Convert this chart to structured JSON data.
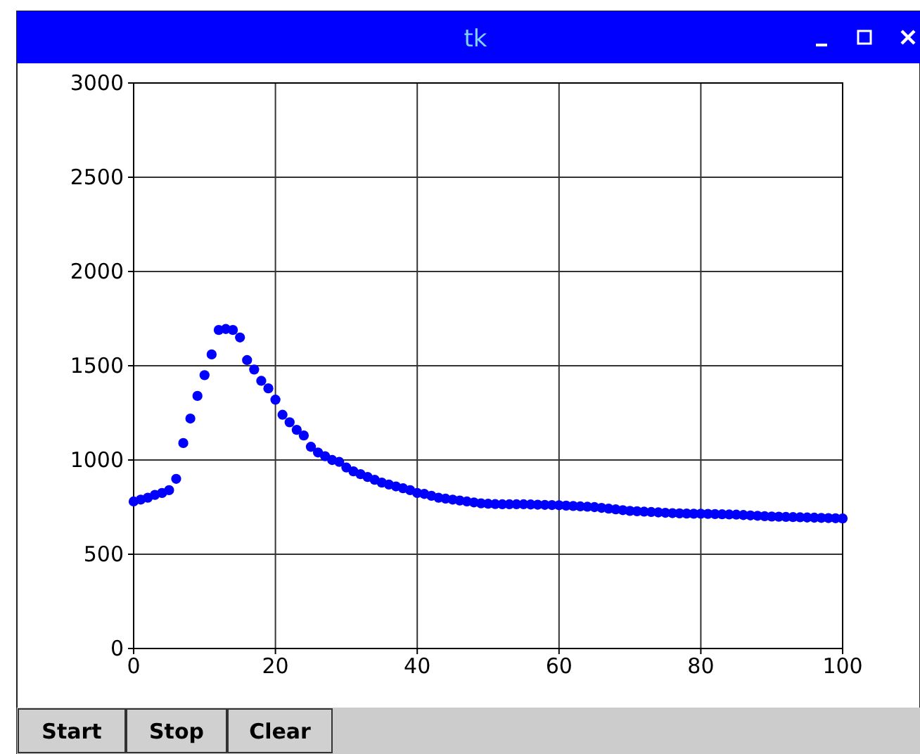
{
  "chart_data": {
    "type": "scatter",
    "title": "tk",
    "annotations": [
      "Start",
      "Stop",
      "Clear"
    ],
    "x": [
      0,
      1,
      2,
      3,
      4,
      5,
      6,
      7,
      8,
      9,
      10,
      11,
      12,
      13,
      14,
      15,
      16,
      17,
      18,
      19,
      20,
      21,
      22,
      23,
      24,
      25,
      26,
      27,
      28,
      29,
      30,
      31,
      32,
      33,
      34,
      35,
      36,
      37,
      38,
      39,
      40,
      41,
      42,
      43,
      44,
      45,
      46,
      47,
      48,
      49,
      50,
      51,
      52,
      53,
      54,
      55,
      56,
      57,
      58,
      59,
      60,
      61,
      62,
      63,
      64,
      65,
      66,
      67,
      68,
      69,
      70,
      71,
      72,
      73,
      74,
      75,
      76,
      77,
      78,
      79,
      80,
      81,
      82,
      83,
      84,
      85,
      86,
      87,
      88,
      89,
      90,
      91,
      92,
      93,
      94,
      95,
      96,
      97,
      98,
      99,
      100
    ],
    "series": [
      {
        "color": "#0000ff",
        "values": [
          780,
          790,
          800,
          815,
          825,
          840,
          900,
          1090,
          1220,
          1340,
          1450,
          1560,
          1690,
          1695,
          1690,
          1650,
          1530,
          1480,
          1420,
          1380,
          1320,
          1240,
          1200,
          1160,
          1130,
          1070,
          1040,
          1020,
          1000,
          990,
          960,
          940,
          925,
          910,
          895,
          880,
          870,
          860,
          850,
          840,
          825,
          820,
          810,
          800,
          795,
          790,
          785,
          780,
          775,
          770,
          768,
          766,
          765,
          765,
          765,
          765,
          764,
          763,
          762,
          761,
          760,
          758,
          756,
          754,
          752,
          750,
          746,
          742,
          738,
          734,
          730,
          728,
          726,
          724,
          722,
          720,
          718,
          717,
          716,
          715,
          715,
          714,
          713,
          712,
          711,
          710,
          708,
          706,
          704,
          702,
          700,
          699,
          698,
          697,
          696,
          695,
          694,
          693,
          692,
          691,
          690
        ]
      }
    ],
    "xlim": [
      0,
      100
    ],
    "ylim": [
      0,
      3000
    ],
    "xticks": [
      0,
      20,
      40,
      60,
      80,
      100
    ],
    "yticks": [
      0,
      500,
      1000,
      1500,
      2000,
      2500,
      3000
    ],
    "grid": true,
    "marker": "circle"
  }
}
